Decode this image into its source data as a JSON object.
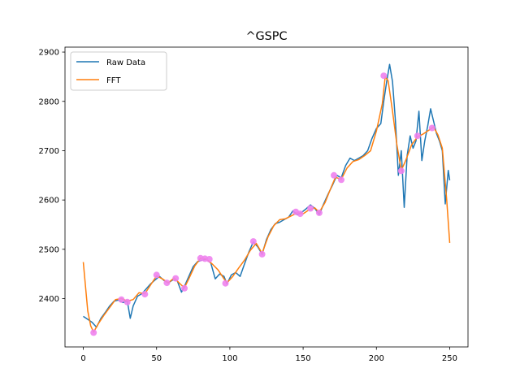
{
  "chart_data": {
    "type": "line",
    "title": "^GSPC",
    "xlabel": "",
    "ylabel": "",
    "xlim": [
      -12.5,
      262.5
    ],
    "ylim": [
      2302,
      2910
    ],
    "xticks": [
      0,
      50,
      100,
      150,
      200,
      250
    ],
    "yticks": [
      2400,
      2500,
      2600,
      2700,
      2800,
      2900
    ],
    "grid": false,
    "legend_position": "top-left",
    "series": [
      {
        "name": "Raw Data",
        "color": "#1f77b4",
        "x": [
          0,
          3,
          6,
          9,
          12,
          15,
          18,
          21,
          24,
          27,
          30,
          32,
          34,
          37,
          40,
          43,
          46,
          49,
          52,
          55,
          58,
          61,
          64,
          67,
          69,
          72,
          75,
          78,
          81,
          84,
          87,
          90,
          93,
          96,
          98,
          101,
          104,
          107,
          110,
          113,
          116,
          119,
          122,
          125,
          128,
          131,
          134,
          137,
          140,
          143,
          146,
          149,
          152,
          155,
          158,
          161,
          164,
          167,
          170,
          173,
          176,
          179,
          182,
          185,
          188,
          191,
          194,
          197,
          200,
          203,
          205,
          207,
          209,
          211,
          213,
          215,
          217,
          219,
          221,
          223,
          225,
          227,
          229,
          231,
          233,
          235,
          237,
          239,
          241,
          243,
          245,
          247,
          249,
          250
        ],
        "y": [
          2364,
          2358,
          2352,
          2342,
          2360,
          2372,
          2385,
          2395,
          2397,
          2392,
          2395,
          2360,
          2385,
          2405,
          2410,
          2420,
          2430,
          2438,
          2445,
          2437,
          2432,
          2438,
          2437,
          2413,
          2425,
          2445,
          2465,
          2475,
          2478,
          2480,
          2472,
          2440,
          2450,
          2445,
          2430,
          2448,
          2453,
          2445,
          2470,
          2495,
          2515,
          2505,
          2490,
          2520,
          2540,
          2552,
          2555,
          2560,
          2565,
          2578,
          2570,
          2575,
          2582,
          2590,
          2583,
          2570,
          2592,
          2612,
          2630,
          2650,
          2645,
          2670,
          2685,
          2680,
          2685,
          2690,
          2700,
          2725,
          2745,
          2755,
          2800,
          2840,
          2875,
          2840,
          2760,
          2650,
          2700,
          2585,
          2690,
          2730,
          2705,
          2720,
          2780,
          2680,
          2720,
          2750,
          2785,
          2760,
          2735,
          2720,
          2700,
          2592,
          2660,
          2640
        ]
      },
      {
        "name": "FFT",
        "color": "#ff7f0e",
        "x": [
          0,
          3,
          5,
          7,
          10,
          14,
          18,
          22,
          26,
          30,
          34,
          38,
          42,
          46,
          50,
          54,
          58,
          62,
          66,
          69,
          72,
          76,
          80,
          84,
          88,
          92,
          96,
          98,
          102,
          106,
          110,
          114,
          118,
          122,
          126,
          130,
          134,
          138,
          142,
          146,
          150,
          154,
          158,
          161,
          165,
          169,
          172,
          176,
          180,
          184,
          188,
          192,
          196,
          200,
          204,
          206,
          208,
          211,
          214,
          217,
          220,
          224,
          228,
          232,
          236,
          239,
          242,
          245,
          248,
          250
        ],
        "y": [
          2474,
          2375,
          2345,
          2332,
          2348,
          2366,
          2382,
          2398,
          2400,
          2395,
          2398,
          2412,
          2410,
          2428,
          2446,
          2440,
          2432,
          2442,
          2430,
          2422,
          2440,
          2466,
          2482,
          2480,
          2470,
          2458,
          2440,
          2432,
          2445,
          2462,
          2478,
          2498,
          2512,
          2492,
          2525,
          2548,
          2560,
          2562,
          2568,
          2574,
          2572,
          2580,
          2584,
          2575,
          2595,
          2625,
          2646,
          2642,
          2665,
          2678,
          2682,
          2690,
          2700,
          2740,
          2795,
          2850,
          2842,
          2780,
          2712,
          2660,
          2680,
          2712,
          2728,
          2734,
          2742,
          2748,
          2732,
          2705,
          2600,
          2513
        ]
      }
    ],
    "markers": {
      "color": "#ee82ee",
      "x": [
        7,
        26,
        30,
        42,
        50,
        57,
        63,
        69,
        80,
        83,
        86,
        97,
        116,
        122,
        145,
        148,
        155,
        161,
        171,
        176,
        205,
        217,
        228,
        238
      ],
      "y": [
        2331,
        2398,
        2393,
        2409,
        2448,
        2432,
        2441,
        2421,
        2482,
        2481,
        2480,
        2431,
        2516,
        2490,
        2576,
        2572,
        2583,
        2574,
        2650,
        2641,
        2852,
        2659,
        2730,
        2746
      ]
    }
  }
}
